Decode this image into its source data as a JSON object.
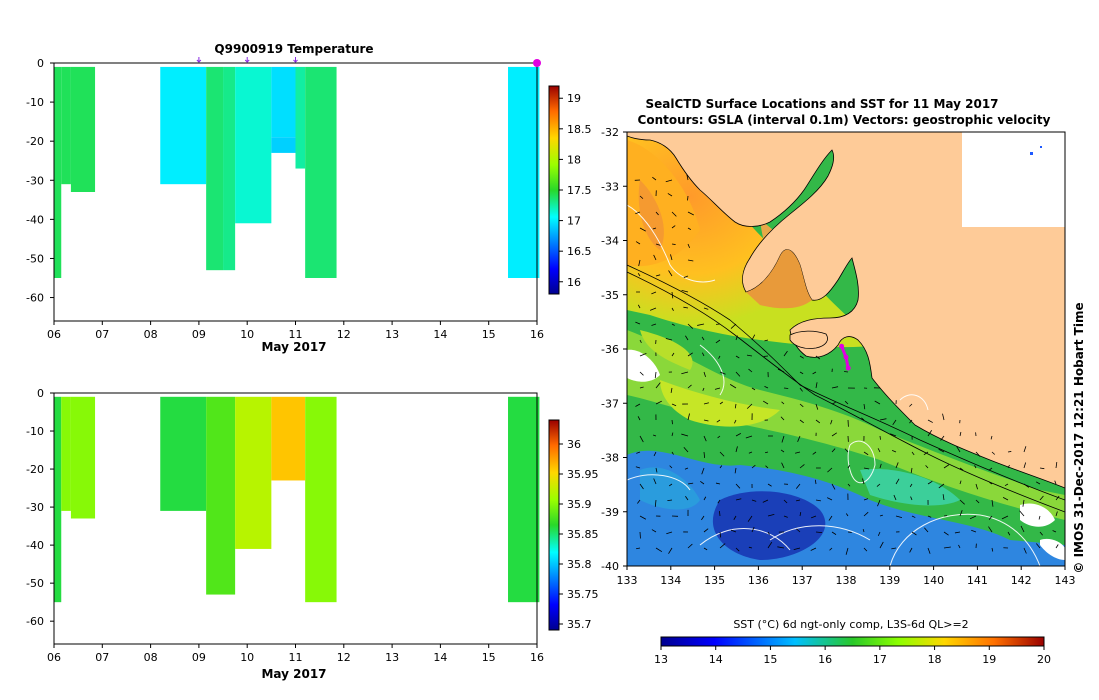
{
  "chart_data": [
    {
      "type": "heatmap",
      "title": "Q9900919  Temperature",
      "xlabel": "May 2017",
      "xticks": [
        "06",
        "07",
        "08",
        "09",
        "10",
        "11",
        "12",
        "13",
        "14",
        "15",
        "16"
      ],
      "xlim": [
        6,
        16
      ],
      "yticks": [
        "0",
        "-10",
        "-20",
        "-30",
        "-40",
        "-50",
        "-60"
      ],
      "ylim": [
        -66,
        0
      ],
      "colorbar": {
        "ticks": [
          "19",
          "18.5",
          "18",
          "17.5",
          "17",
          "16.5",
          "16"
        ],
        "range": [
          15.8,
          19.2
        ]
      },
      "profiles": [
        {
          "t0": 6.0,
          "t1": 6.15,
          "segments": [
            {
              "top": -1,
              "bottom": -55,
              "value": 17.4
            }
          ]
        },
        {
          "t0": 6.15,
          "t1": 6.35,
          "segments": [
            {
              "top": -1,
              "bottom": -31,
              "value": 17.4
            }
          ]
        },
        {
          "t0": 6.35,
          "t1": 6.85,
          "segments": [
            {
              "top": -1,
              "bottom": -33,
              "value": 17.4
            }
          ]
        },
        {
          "t0": 8.2,
          "t1": 9.15,
          "segments": [
            {
              "top": -1,
              "bottom": -31,
              "value": 17.0
            }
          ]
        },
        {
          "t0": 9.15,
          "t1": 9.5,
          "segments": [
            {
              "top": -1,
              "bottom": -53,
              "value": 17.35
            }
          ]
        },
        {
          "t0": 9.5,
          "t1": 9.75,
          "segments": [
            {
              "top": -1,
              "bottom": -53,
              "value": 17.3
            }
          ]
        },
        {
          "t0": 9.75,
          "t1": 10.5,
          "segments": [
            {
              "top": -1,
              "bottom": -41,
              "value": 17.15
            }
          ]
        },
        {
          "t0": 10.5,
          "t1": 11.0,
          "segments": [
            {
              "top": -1,
              "bottom": -19,
              "value": 16.95
            },
            {
              "top": -19,
              "bottom": -23,
              "value": 16.9
            }
          ]
        },
        {
          "t0": 11.0,
          "t1": 11.2,
          "segments": [
            {
              "top": -1,
              "bottom": -27,
              "value": 17.25
            }
          ]
        },
        {
          "t0": 11.2,
          "t1": 11.85,
          "segments": [
            {
              "top": -1,
              "bottom": -55,
              "value": 17.35
            }
          ]
        },
        {
          "t0": 15.4,
          "t1": 16.05,
          "segments": [
            {
              "top": -1,
              "bottom": -55,
              "value": 17.0
            }
          ]
        }
      ],
      "markers": [
        9.0,
        10.0,
        11.0
      ],
      "last_marker": 16.0
    },
    {
      "type": "heatmap",
      "title": "",
      "xlabel": "May 2017",
      "xticks": [
        "06",
        "07",
        "08",
        "09",
        "10",
        "11",
        "12",
        "13",
        "14",
        "15",
        "16"
      ],
      "xlim": [
        6,
        16
      ],
      "yticks": [
        "0",
        "-10",
        "-20",
        "-30",
        "-40",
        "-50",
        "-60"
      ],
      "ylim": [
        -66,
        0
      ],
      "colorbar": {
        "ticks": [
          "36",
          "35.95",
          "35.9",
          "35.85",
          "35.8",
          "35.75",
          "35.7"
        ],
        "range": [
          35.69,
          36.04
        ]
      },
      "profiles": [
        {
          "t0": 6.0,
          "t1": 6.15,
          "segments": [
            {
              "top": -1,
              "bottom": -55,
              "value": 35.86
            }
          ]
        },
        {
          "t0": 6.15,
          "t1": 6.35,
          "segments": [
            {
              "top": -1,
              "bottom": -31,
              "value": 35.9
            }
          ]
        },
        {
          "t0": 6.35,
          "t1": 6.85,
          "segments": [
            {
              "top": -1,
              "bottom": -33,
              "value": 35.9
            }
          ]
        },
        {
          "t0": 8.2,
          "t1": 9.15,
          "segments": [
            {
              "top": -1,
              "bottom": -31,
              "value": 35.86
            }
          ]
        },
        {
          "t0": 9.15,
          "t1": 9.75,
          "segments": [
            {
              "top": -1,
              "bottom": -53,
              "value": 35.88
            }
          ]
        },
        {
          "t0": 9.75,
          "t1": 10.5,
          "segments": [
            {
              "top": -1,
              "bottom": -41,
              "value": 35.92
            }
          ]
        },
        {
          "t0": 10.5,
          "t1": 11.2,
          "segments": [
            {
              "top": -1,
              "bottom": -23,
              "value": 35.96
            }
          ]
        },
        {
          "t0": 11.2,
          "t1": 11.85,
          "segments": [
            {
              "top": -1,
              "bottom": -55,
              "value": 35.9
            }
          ]
        },
        {
          "t0": 15.4,
          "t1": 16.05,
          "segments": [
            {
              "top": -1,
              "bottom": -55,
              "value": 35.86
            }
          ]
        }
      ]
    },
    {
      "type": "heatmap",
      "title": "SealCTD Surface Locations and SST for 11 May 2017",
      "subtitle": "Contours: GSLA (interval 0.1m) Vectors: geostrophic velocity",
      "xlim": [
        133,
        143
      ],
      "ylim": [
        -40,
        -32
      ],
      "xticks": [
        "133",
        "134",
        "135",
        "136",
        "137",
        "138",
        "139",
        "140",
        "141",
        "142",
        "143"
      ],
      "yticks": [
        "-32",
        "-33",
        "-34",
        "-35",
        "-36",
        "-37",
        "-38",
        "-39",
        "-40"
      ],
      "colorbar": {
        "label": "SST (°C) 6d ngt-only comp, L3S-6d QL>=2",
        "ticks": [
          "13",
          "14",
          "15",
          "16",
          "17",
          "18",
          "19",
          "20"
        ],
        "range": [
          13,
          20
        ]
      },
      "side_label": "© IMOS 31-Dec-2017 12:21 Hobart Time",
      "track": [
        {
          "lon": 137.9,
          "lat": -35.95
        },
        {
          "lon": 138.0,
          "lat": -36.15
        },
        {
          "lon": 138.05,
          "lat": -36.35
        }
      ]
    }
  ]
}
